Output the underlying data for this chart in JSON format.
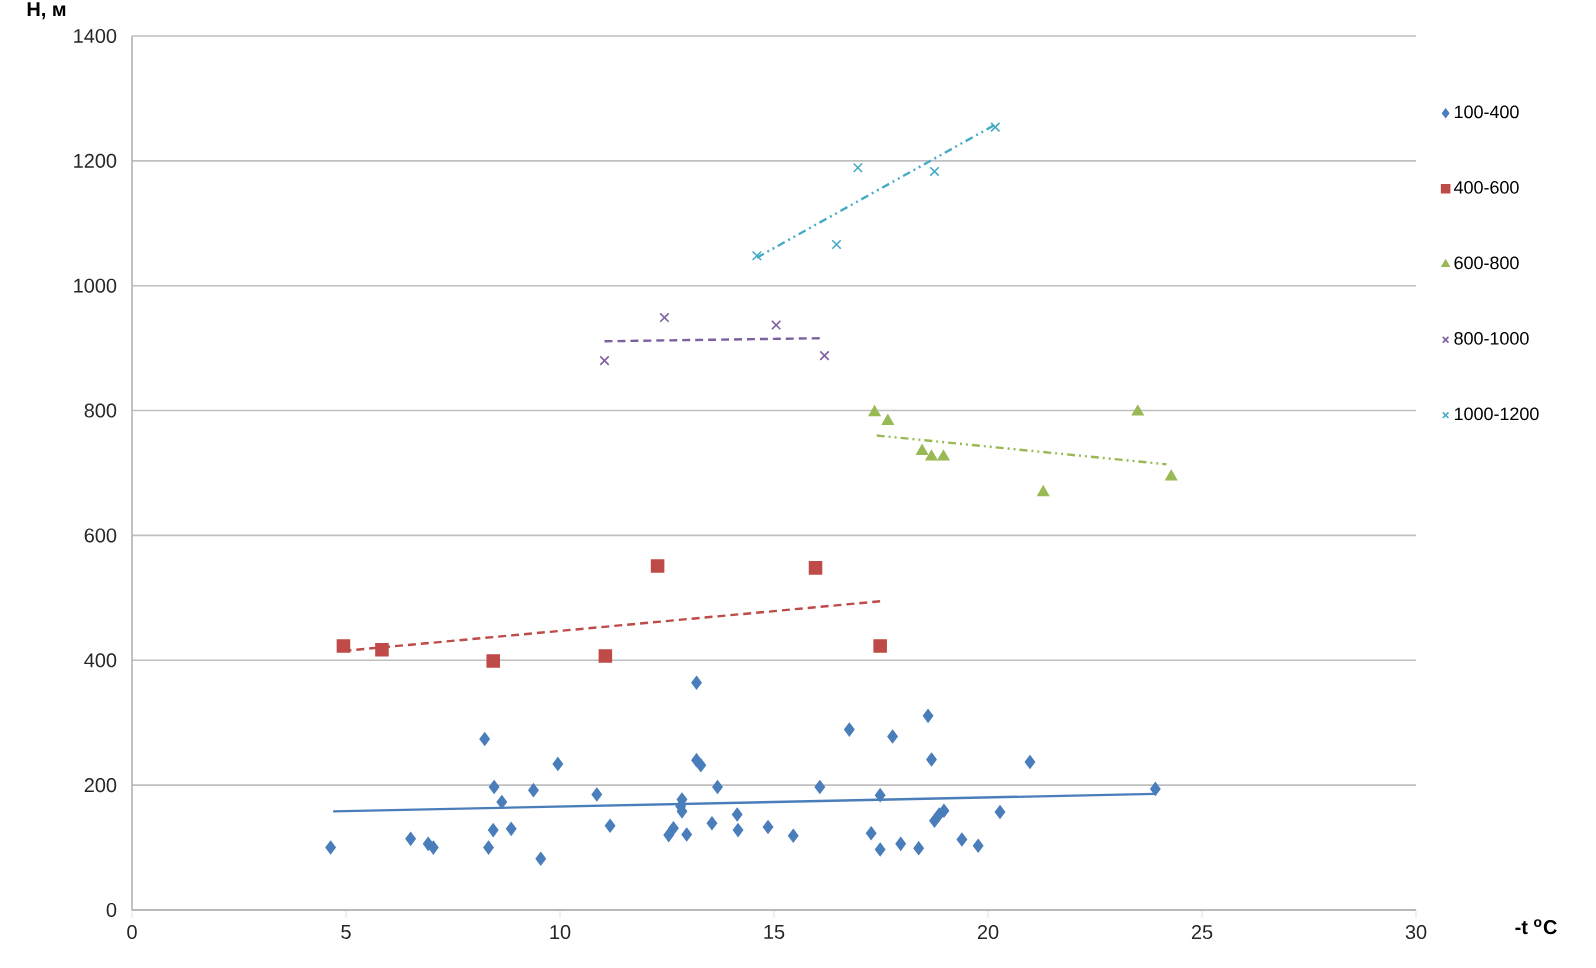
{
  "chart_data": {
    "type": "scatter",
    "xlabel": "-t $^{o}$C",
    "ylabel": "H, м",
    "xlim": [
      0,
      30
    ],
    "xticks": [
      0,
      5,
      10,
      15,
      20,
      25,
      30
    ],
    "ylim": [
      0,
      1400
    ],
    "yticks": [
      0,
      200,
      400,
      600,
      800,
      1000,
      1200,
      1400
    ],
    "grid": "y",
    "legend": "right",
    "series": [
      {
        "name": "100-400",
        "color": "#4a7ebb",
        "marker": "diamond",
        "x": [
          4.64,
          6.51,
          6.92,
          7.04,
          8.24,
          8.46,
          8.64,
          8.44,
          8.33,
          8.86,
          9.38,
          9.55,
          9.95,
          10.86,
          11.17,
          12.54,
          12.65,
          12.85,
          12.82,
          12.85,
          12.96,
          13.19,
          13.19,
          13.29,
          13.55,
          13.68,
          14.14,
          14.16,
          14.86,
          15.45,
          16.07,
          16.76,
          17.27,
          17.48,
          17.48,
          17.77,
          17.96,
          18.38,
          18.6,
          18.68,
          18.75,
          18.86,
          18.97,
          19.39,
          19.77,
          20.28,
          20.98,
          23.91
        ],
        "values": [
          100,
          114,
          106,
          100,
          274,
          197,
          173,
          128,
          100,
          130,
          192,
          82,
          234,
          185,
          135,
          120,
          131,
          177,
          166,
          158,
          121,
          364,
          240,
          232,
          139,
          197,
          153,
          128,
          133,
          119,
          197,
          289,
          123,
          184,
          97,
          278,
          106,
          99,
          311,
          241,
          143,
          153,
          159,
          113,
          103,
          157,
          237,
          194
        ]
      },
      {
        "name": "400-600",
        "color": "#be4b48",
        "marker": "square",
        "x": [
          4.94,
          5.84,
          8.44,
          11.06,
          12.28,
          15.97,
          17.48
        ],
        "values": [
          423,
          417,
          399,
          407,
          551,
          548,
          423
        ]
      },
      {
        "name": "600-800",
        "color": "#98b954",
        "marker": "triangle",
        "x": [
          17.35,
          17.66,
          18.46,
          18.68,
          18.96,
          21.29,
          23.5,
          24.28
        ],
        "values": [
          797,
          783,
          735,
          726,
          726,
          669,
          798,
          694
        ]
      },
      {
        "name": "800-1000",
        "color": "#7d60a0",
        "marker": "cross",
        "x": [
          11.04,
          12.44,
          15.05,
          16.18
        ],
        "values": [
          880,
          949,
          937,
          888
        ]
      },
      {
        "name": "1000-1200",
        "color": "#46aac5",
        "marker": "cross",
        "x": [
          14.6,
          16.46,
          16.96,
          18.75,
          20.17
        ],
        "values": [
          1048,
          1066,
          1189,
          1183,
          1254
        ]
      },
      {
        "type": "line",
        "color": "#4a7ebb",
        "line_style": "solid",
        "x": [
          4.7,
          23.9
        ],
        "values": [
          158,
          186
        ]
      },
      {
        "type": "line",
        "color": "#be4b48",
        "line_style": "dashed",
        "x": [
          4.94,
          17.56
        ],
        "values": [
          415,
          495
        ]
      },
      {
        "type": "line",
        "color": "#98b954",
        "line_style": "dotted",
        "x": [
          17.4,
          24.17
        ],
        "values": [
          760,
          714
        ]
      },
      {
        "type": "line",
        "color": "#7d60a0",
        "line_style": "dashed",
        "x": [
          11.04,
          16.18
        ],
        "values": [
          911,
          916
        ]
      },
      {
        "type": "line",
        "color": "#46aac5",
        "line_style": "dotted",
        "x": [
          14.6,
          20.17
        ],
        "values": [
          1045,
          1258
        ]
      }
    ]
  }
}
